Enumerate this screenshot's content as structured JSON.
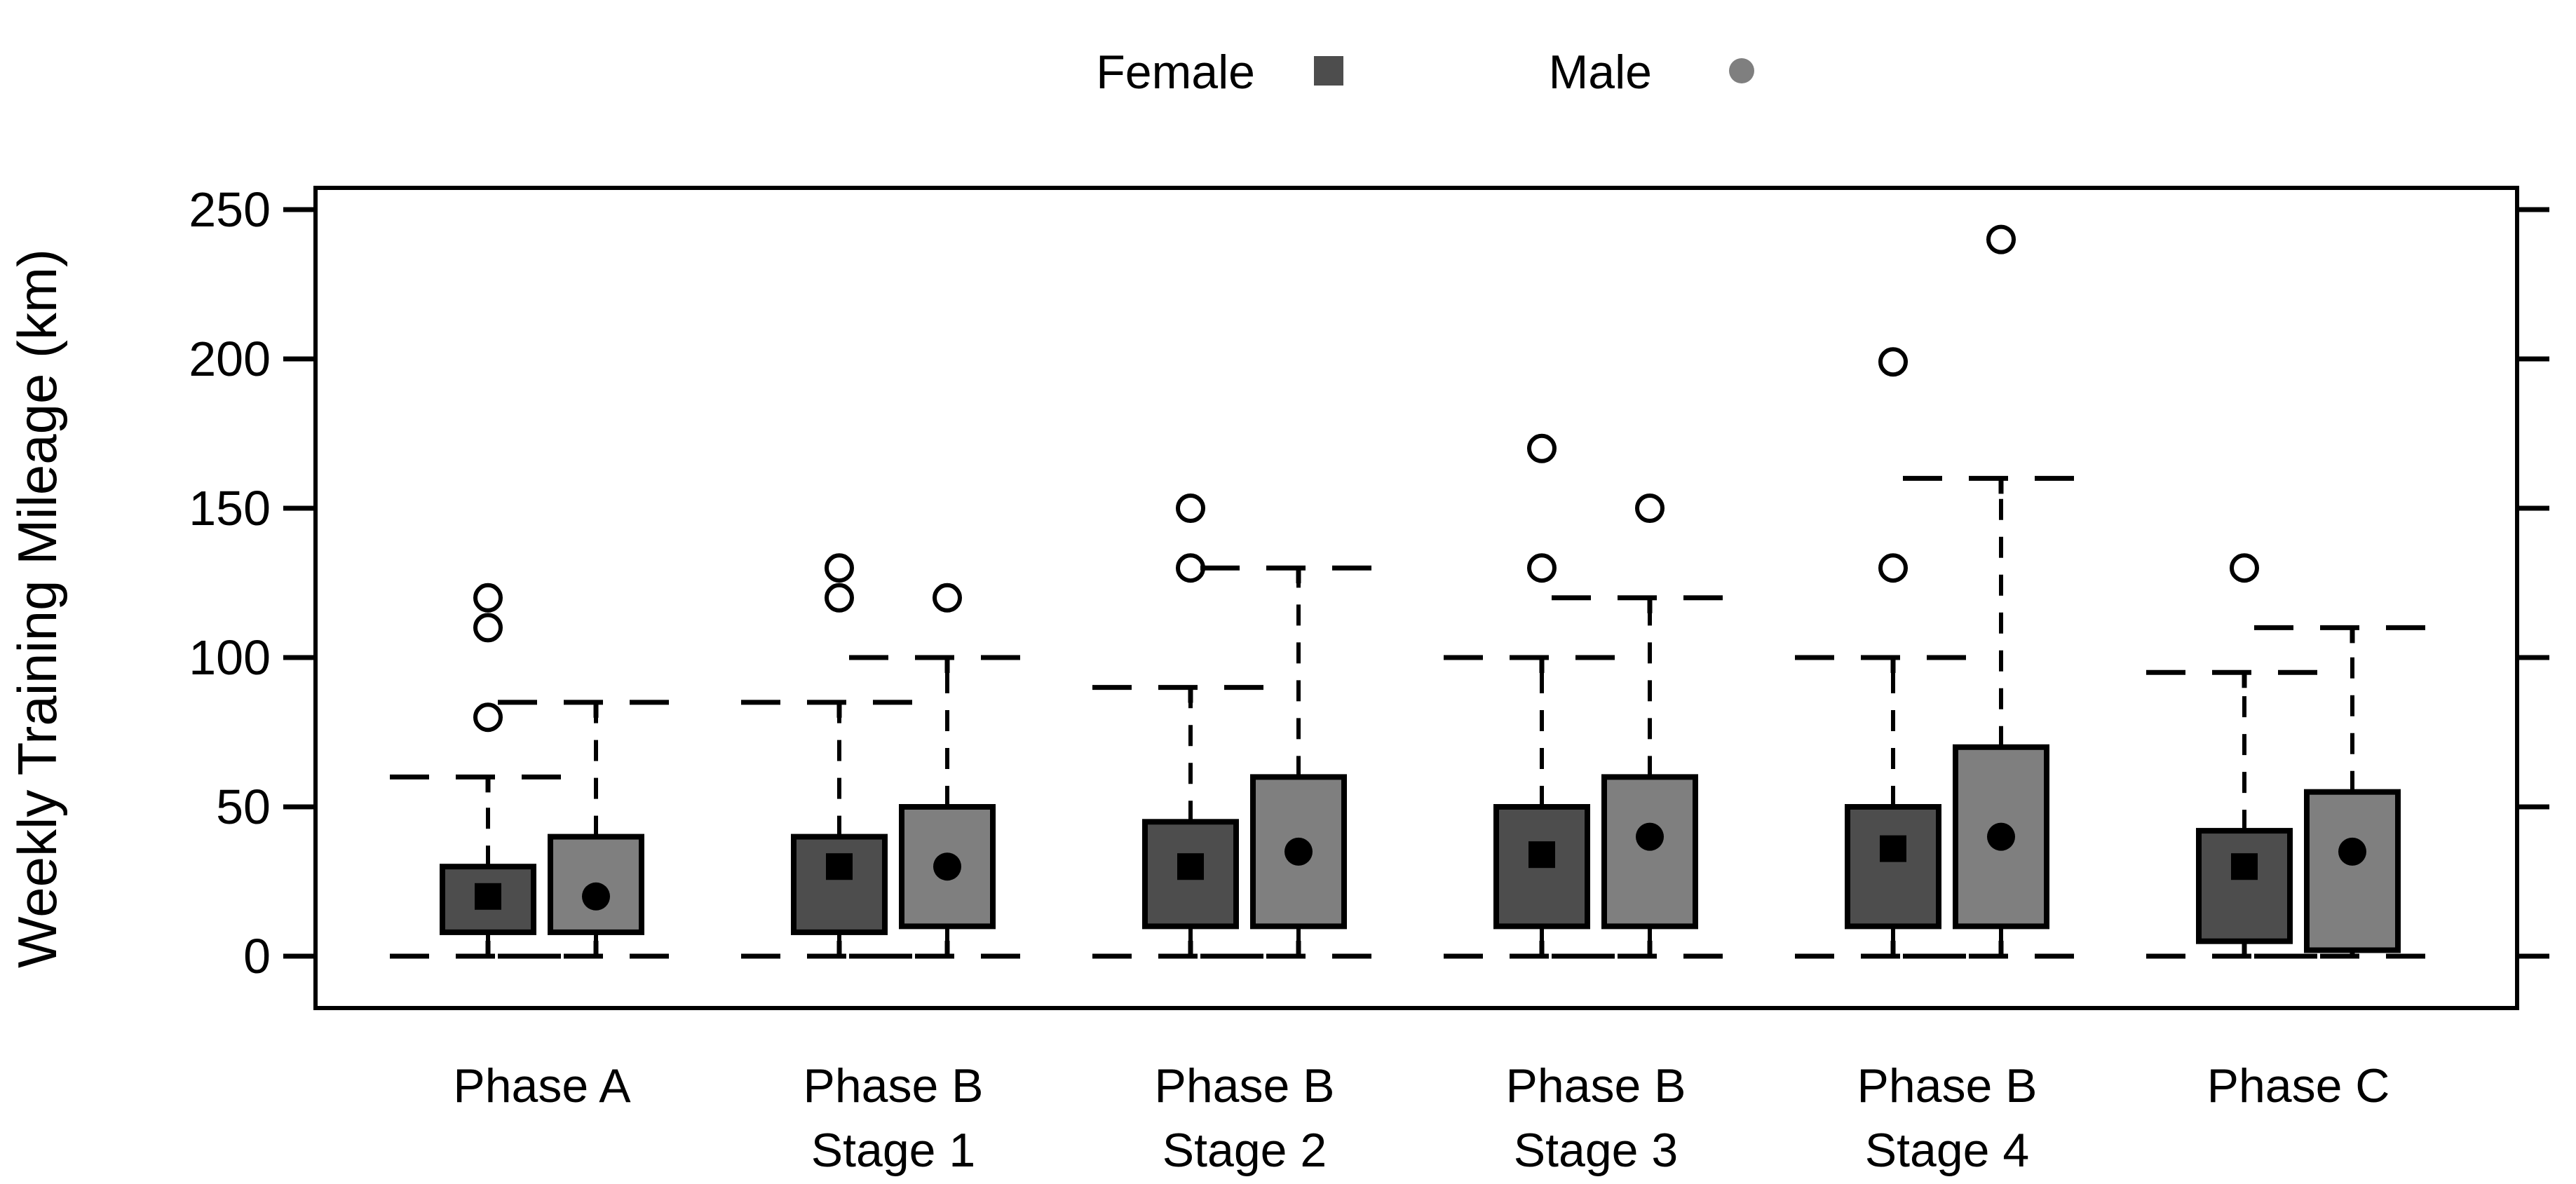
{
  "chart_data": {
    "type": "boxplot",
    "title": "",
    "xlabel": "",
    "ylabel": "Weekly Training Mileage (km)",
    "yticks": [
      0,
      50,
      100,
      150,
      200,
      250
    ],
    "ylim": [
      -20,
      258
    ],
    "grid": false,
    "frame": true,
    "legend_position": "top-center",
    "legend": [
      {
        "label": "Female",
        "marker": "square",
        "color": "#4d4d4d"
      },
      {
        "label": "Male",
        "marker": "circle",
        "color": "#7f7f7f"
      }
    ],
    "categories": [
      [
        "Phase A"
      ],
      [
        "Phase B",
        "Stage 1"
      ],
      [
        "Phase B",
        "Stage 2"
      ],
      [
        "Phase B",
        "Stage 3"
      ],
      [
        "Phase B",
        "Stage 4"
      ],
      [
        "Phase C"
      ]
    ],
    "series": [
      {
        "name": "Female",
        "fill": "#4d4d4d",
        "mean_marker": "square",
        "boxes": [
          {
            "category": "Phase A",
            "whisker_low": 0,
            "q1": 8,
            "mean": 20,
            "q3": 30,
            "whisker_high": 60,
            "outliers": [
              80,
              110,
              120
            ]
          },
          {
            "category": "Phase B Stage 1",
            "whisker_low": 0,
            "q1": 8,
            "mean": 30,
            "q3": 40,
            "whisker_high": 85,
            "outliers": [
              120,
              130
            ]
          },
          {
            "category": "Phase B Stage 2",
            "whisker_low": 0,
            "q1": 10,
            "mean": 30,
            "q3": 45,
            "whisker_high": 90,
            "outliers": [
              130,
              150
            ]
          },
          {
            "category": "Phase B Stage 3",
            "whisker_low": 0,
            "q1": 10,
            "mean": 34,
            "q3": 50,
            "whisker_high": 100,
            "outliers": [
              130,
              170
            ]
          },
          {
            "category": "Phase B Stage 4",
            "whisker_low": 0,
            "q1": 10,
            "mean": 36,
            "q3": 50,
            "whisker_high": 100,
            "outliers": [
              130,
              199
            ]
          },
          {
            "category": "Phase C",
            "whisker_low": 0,
            "q1": 5,
            "mean": 30,
            "q3": 42,
            "whisker_high": 95,
            "outliers": [
              130
            ]
          }
        ]
      },
      {
        "name": "Male",
        "fill": "#7f7f7f",
        "mean_marker": "circle",
        "boxes": [
          {
            "category": "Phase A",
            "whisker_low": 0,
            "q1": 8,
            "mean": 20,
            "q3": 40,
            "whisker_high": 85,
            "outliers": []
          },
          {
            "category": "Phase B Stage 1",
            "whisker_low": 0,
            "q1": 10,
            "mean": 30,
            "q3": 50,
            "whisker_high": 100,
            "outliers": [
              120
            ]
          },
          {
            "category": "Phase B Stage 2",
            "whisker_low": 0,
            "q1": 10,
            "mean": 35,
            "q3": 60,
            "whisker_high": 130,
            "outliers": []
          },
          {
            "category": "Phase B Stage 3",
            "whisker_low": 0,
            "q1": 10,
            "mean": 40,
            "q3": 60,
            "whisker_high": 120,
            "outliers": [
              150
            ]
          },
          {
            "category": "Phase B Stage 4",
            "whisker_low": 0,
            "q1": 10,
            "mean": 40,
            "q3": 70,
            "whisker_high": 160,
            "outliers": [
              240
            ]
          },
          {
            "category": "Phase C",
            "whisker_low": 0,
            "q1": 2,
            "mean": 35,
            "q3": 55,
            "whisker_high": 110,
            "outliers": []
          }
        ]
      }
    ]
  }
}
